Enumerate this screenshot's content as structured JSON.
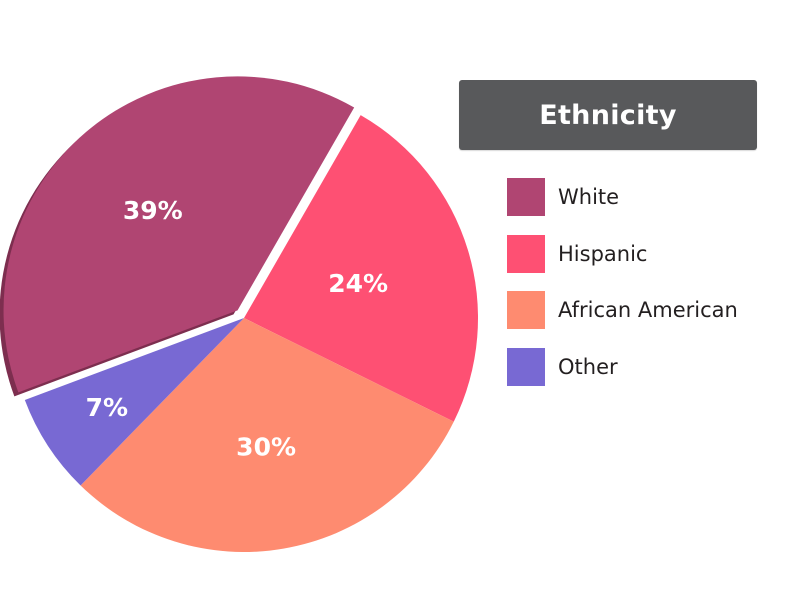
{
  "chart_data": {
    "type": "pie",
    "title": "Ethnicity",
    "categories": [
      "White",
      "Hispanic",
      "African American",
      "Other"
    ],
    "values": [
      39,
      24,
      30,
      7
    ],
    "value_labels": [
      "39%",
      "24%",
      "30%",
      "7%"
    ],
    "colors": [
      "#b04572",
      "#fe5073",
      "#fe8b70",
      "#7869d3"
    ],
    "exploded": "White",
    "legend_placement": "right"
  },
  "legend": {
    "title": "Ethnicity",
    "items": [
      {
        "label": "White",
        "color": "#b04572"
      },
      {
        "label": "Hispanic",
        "color": "#fe5073"
      },
      {
        "label": "African American",
        "color": "#fe8b70"
      },
      {
        "label": "Other",
        "color": "#7869d3"
      }
    ]
  }
}
